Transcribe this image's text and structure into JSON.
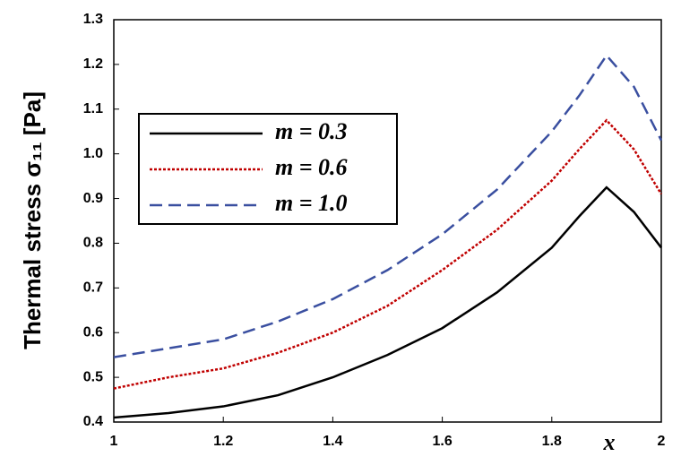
{
  "chart_data": {
    "type": "line",
    "ylabel": "Thermal stress σ₁₁ [Pa]",
    "xlabel": "x",
    "x": [
      1,
      1.1,
      1.2,
      1.3,
      1.4,
      1.5,
      1.6,
      1.7,
      1.8,
      1.85,
      1.9,
      1.95,
      2
    ],
    "series": [
      {
        "name": "m = 0.3",
        "color": "#000000",
        "dash": "none",
        "values": [
          0.41,
          0.42,
          0.435,
          0.46,
          0.5,
          0.55,
          0.61,
          0.69,
          0.79,
          0.86,
          0.925,
          0.87,
          0.79
        ]
      },
      {
        "name": "m = 0.6",
        "color": "#c00000",
        "dash": "3 2",
        "values": [
          0.475,
          0.5,
          0.52,
          0.555,
          0.6,
          0.66,
          0.74,
          0.83,
          0.94,
          1.01,
          1.075,
          1.01,
          0.91
        ]
      },
      {
        "name": "m = 1.0",
        "color": "#3a4fa0",
        "dash": "14 7",
        "values": [
          0.545,
          0.565,
          0.585,
          0.625,
          0.675,
          0.74,
          0.82,
          0.92,
          1.05,
          1.13,
          1.22,
          1.15,
          1.03
        ]
      }
    ],
    "xlim": [
      1,
      2
    ],
    "xticks": [
      1,
      1.2,
      1.4,
      1.6,
      1.8,
      2
    ],
    "ylim": [
      0.4,
      1.3
    ],
    "yticks": [
      0.4,
      0.5,
      0.6,
      0.7,
      0.8,
      0.9,
      {
        "value": 1,
        "label": "1.0"
      },
      1.1,
      1.2,
      1.3
    ],
    "legend": "upper left",
    "grid": false
  }
}
